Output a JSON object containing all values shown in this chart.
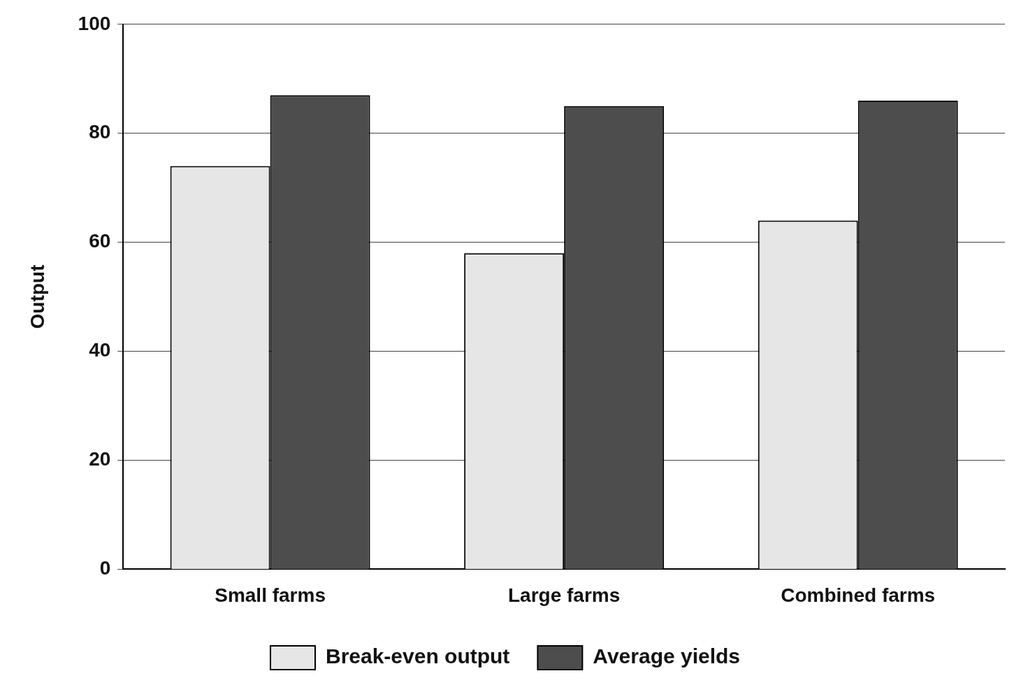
{
  "chart_data": {
    "type": "bar",
    "ylabel": "Output",
    "categories": [
      "Small farms",
      "Large farms",
      "Combined farms"
    ],
    "series": [
      {
        "name": "Break-even output",
        "color": "#e6e6e6",
        "values": [
          74,
          58,
          64
        ]
      },
      {
        "name": "Average yields",
        "color": "#4d4d4d",
        "values": [
          87,
          85,
          86
        ]
      }
    ],
    "ylim": [
      0,
      100
    ],
    "yticks": [
      0,
      20,
      40,
      60,
      80,
      100
    ],
    "grid": "y",
    "legend": "bottom"
  }
}
